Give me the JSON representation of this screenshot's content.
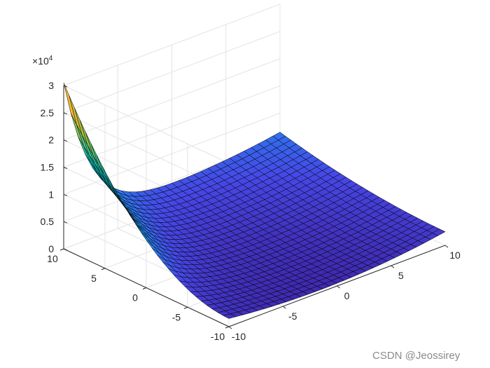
{
  "chart_data": {
    "type": "surface",
    "title": "",
    "xlabel": "",
    "ylabel": "",
    "zlabel": "",
    "x": [
      -10,
      -9,
      -8,
      -7,
      -6,
      -5,
      -4,
      -3,
      -2,
      -1,
      0,
      1,
      2,
      3,
      4,
      5,
      6,
      7,
      8,
      9,
      10
    ],
    "y": [
      -10,
      -9,
      -8,
      -7,
      -6,
      -5,
      -4,
      -3,
      -2,
      -1,
      0,
      1,
      2,
      3,
      4,
      5,
      6,
      7,
      8,
      9,
      10
    ],
    "z_estimate": {
      "description": "surface height read off the figure",
      "at_x_-10_y_10": 30000,
      "at_x_-10_y_-10": 5000,
      "at_x_0_y_-10": 0,
      "at_x_10_y_-10": 1000,
      "at_x_10_y_10": 2000,
      "at_x_-10_y_0": 1500
    },
    "xlim": [
      -10,
      10
    ],
    "ylim": [
      -10,
      10
    ],
    "zlim": [
      0,
      30000
    ],
    "x_ticks": [
      "-10",
      "-5",
      "0",
      "5",
      "10"
    ],
    "y_ticks": [
      "-10",
      "-5",
      "0",
      "5",
      "10"
    ],
    "z_ticks": [
      "0",
      "0.5",
      "1",
      "1.5",
      "2",
      "2.5",
      "3"
    ],
    "z_multiplier": "×10",
    "z_multiplier_exp": "4",
    "colormap": "parula",
    "grid": true
  },
  "watermark": "CSDN @Jeossirey"
}
